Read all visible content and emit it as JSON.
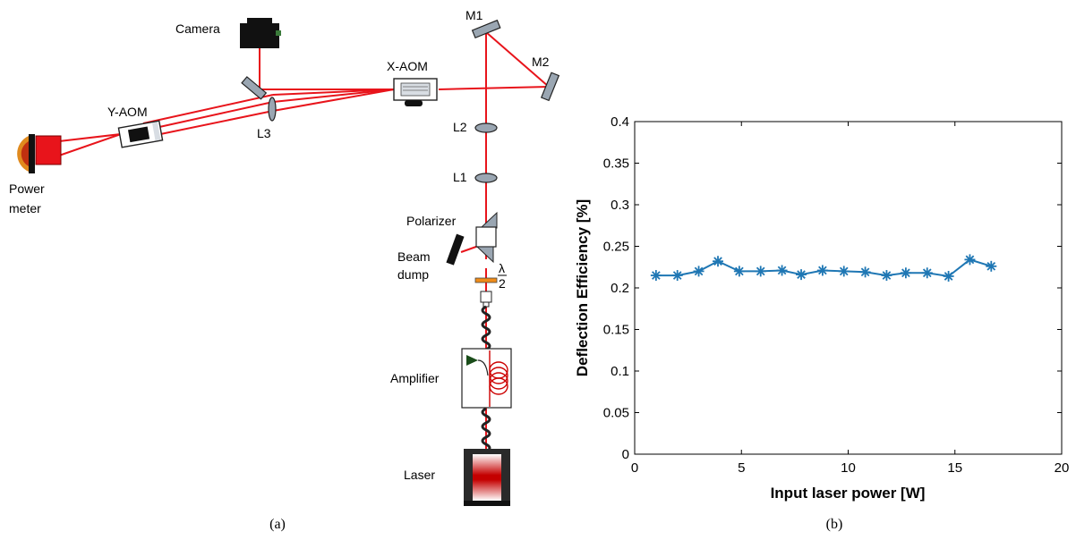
{
  "panel_a": {
    "caption": "(a)",
    "labels": {
      "camera": "Camera",
      "x_aom": "X-AOM",
      "y_aom": "Y-AOM",
      "m1": "M1",
      "m2": "M2",
      "l1": "L1",
      "l2": "L2",
      "l3": "L3",
      "power": "Power",
      "meter": "meter",
      "polarizer": "Polarizer",
      "beam": "Beam",
      "dump": "dump",
      "lambda": "λ",
      "two": "2",
      "amplifier": "Amplifier",
      "laser": "Laser"
    },
    "colors": {
      "beam": "#e8141b",
      "optic": "#9aa6b2",
      "dark": "#111111"
    }
  },
  "panel_b": {
    "caption": "(b)",
    "chart_data": {
      "type": "line",
      "x": [
        1,
        2,
        3,
        3.9,
        4.9,
        5.9,
        6.9,
        7.8,
        8.8,
        9.8,
        10.8,
        11.8,
        12.7,
        13.7,
        14.7,
        15.7,
        16.7
      ],
      "series": [
        {
          "values": [
            0.215,
            0.215,
            0.22,
            0.232,
            0.22,
            0.22,
            0.221,
            0.216,
            0.221,
            0.22,
            0.219,
            0.215,
            0.218,
            0.218,
            0.214,
            0.234,
            0.226
          ]
        }
      ],
      "marker": "asterisk",
      "color": "#1f77b4",
      "xlabel": "Input laser power [W]",
      "ylabel": "Deflection Efficiency [%]",
      "xlim": [
        0,
        20
      ],
      "ylim": [
        0,
        0.4
      ],
      "xticks": [
        "0",
        "5",
        "10",
        "15",
        "20"
      ],
      "yticks": [
        "0",
        "0.05",
        "0.1",
        "0.15",
        "0.2",
        "0.25",
        "0.3",
        "0.35",
        "0.4"
      ],
      "grid": false
    }
  }
}
